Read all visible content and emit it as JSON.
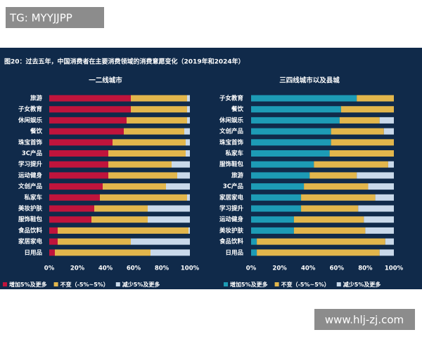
{
  "watermarks": [
    "TG: MYYJJPP",
    "www.hlj-zj.com"
  ],
  "title": "图20：过去五年，中国消费者在主要消费领域的消费意愿变化（2019年和2024年）",
  "chart_data": [
    {
      "type": "bar",
      "orientation": "horizontal",
      "stacked": true,
      "title": "一二线城市",
      "categories": [
        "旅游",
        "子女教育",
        "休闲娱乐",
        "餐饮",
        "珠宝首饰",
        "3C产品",
        "学习提升",
        "运动健身",
        "文创产品",
        "私家车",
        "美妆护肤",
        "服饰鞋包",
        "食品饮料",
        "家居家电",
        "日用品"
      ],
      "series": [
        {
          "name": "增加5%及更多",
          "color": "#c0143c",
          "values": [
            58,
            58,
            55,
            53,
            45,
            42,
            42,
            42,
            38,
            36,
            32,
            30,
            6,
            6,
            4
          ]
        },
        {
          "name": "不变（-5%~5%）",
          "color": "#e2b64c",
          "values": [
            40,
            40,
            43,
            43,
            52,
            55,
            45,
            49,
            45,
            62,
            38,
            40,
            93,
            52,
            68
          ]
        },
        {
          "name": "减少5%及更多",
          "color": "#c9d9ea",
          "values": [
            2,
            2,
            2,
            4,
            3,
            3,
            13,
            9,
            17,
            2,
            30,
            30,
            1,
            42,
            28
          ]
        }
      ],
      "xlim": [
        0,
        100
      ],
      "xticks": [
        {
          "value": 0,
          "label": "0%"
        },
        {
          "value": 20,
          "label": "20%"
        },
        {
          "value": 40,
          "label": "40%"
        },
        {
          "value": 60,
          "label": "60%"
        },
        {
          "value": 80,
          "label": "80%"
        },
        {
          "value": 100,
          "label": "100%"
        }
      ]
    },
    {
      "type": "bar",
      "orientation": "horizontal",
      "stacked": true,
      "title": "三四线城市以及县城",
      "categories": [
        "子女教育",
        "餐饮",
        "休闲娱乐",
        "文创产品",
        "珠宝首饰",
        "私家车",
        "服饰鞋包",
        "旅游",
        "3C产品",
        "家居家电",
        "学习提升",
        "运动健身",
        "美妆护肤",
        "食品饮料",
        "日用品"
      ],
      "series": [
        {
          "name": "增加5%及更多",
          "color": "#1d9bb5",
          "values": [
            74,
            63,
            62,
            56,
            56,
            55,
            44,
            41,
            37,
            35,
            35,
            30,
            30,
            4,
            4
          ]
        },
        {
          "name": "不变（-5%~5%）",
          "color": "#e2b64c",
          "values": [
            26,
            37,
            28,
            37,
            44,
            45,
            52,
            33,
            45,
            52,
            40,
            49,
            50,
            90,
            86
          ]
        },
        {
          "name": "减少5%及更多",
          "color": "#c9d9ea",
          "values": [
            0,
            0,
            10,
            7,
            0,
            0,
            4,
            26,
            18,
            13,
            25,
            21,
            20,
            6,
            10
          ]
        }
      ],
      "xlim": [
        0,
        100
      ],
      "xticks": [
        {
          "value": 0,
          "label": "0%"
        },
        {
          "value": 20,
          "label": "20%"
        },
        {
          "value": 40,
          "label": "40%"
        },
        {
          "value": 60,
          "label": "60%"
        },
        {
          "value": 80,
          "label": "80%"
        },
        {
          "value": 100,
          "label": "100%"
        }
      ]
    }
  ]
}
